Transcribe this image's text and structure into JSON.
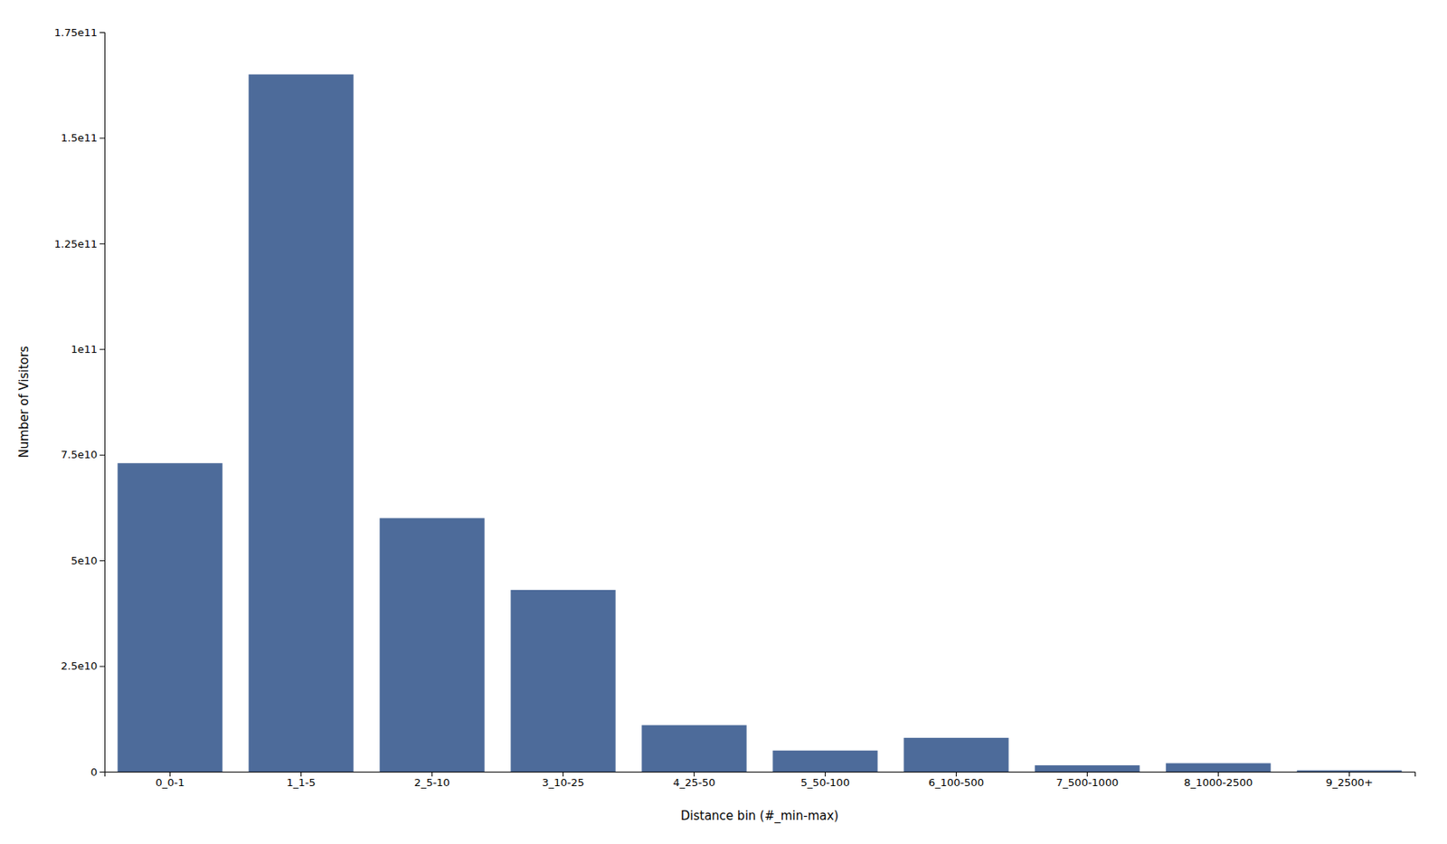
{
  "chart_data": {
    "type": "bar",
    "categories": [
      "0_0-1",
      "1_1-5",
      "2_5-10",
      "3_10-25",
      "4_25-50",
      "5_50-100",
      "6_100-500",
      "7_500-1000",
      "8_1000-2500",
      "9_2500+"
    ],
    "values": [
      73000000000.0,
      165000000000.0,
      60000000000.0,
      43000000000.0,
      11000000000.0,
      5000000000.0,
      8000000000.0,
      1500000000.0,
      2000000000.0,
      300000000.0
    ],
    "color": "#4d6b9a",
    "xlabel": "Distance bin (#_min-max)",
    "ylabel": "Number of Visitors",
    "ylim": [
      0,
      175000000000.0
    ],
    "yticks": [
      0,
      {
        "value": 25000000000.0,
        "label": "2.5e10"
      },
      {
        "value": 50000000000.0,
        "label": "5e10"
      },
      {
        "value": 75000000000.0,
        "label": "7.5e10"
      },
      {
        "value": 100000000000.0,
        "label": "1e11"
      },
      {
        "value": 125000000000.0,
        "label": "1.25e11"
      },
      {
        "value": 150000000000.0,
        "label": "1.5e11"
      },
      {
        "value": 175000000000.0,
        "label": "1.75e11"
      }
    ],
    "grid": false
  }
}
